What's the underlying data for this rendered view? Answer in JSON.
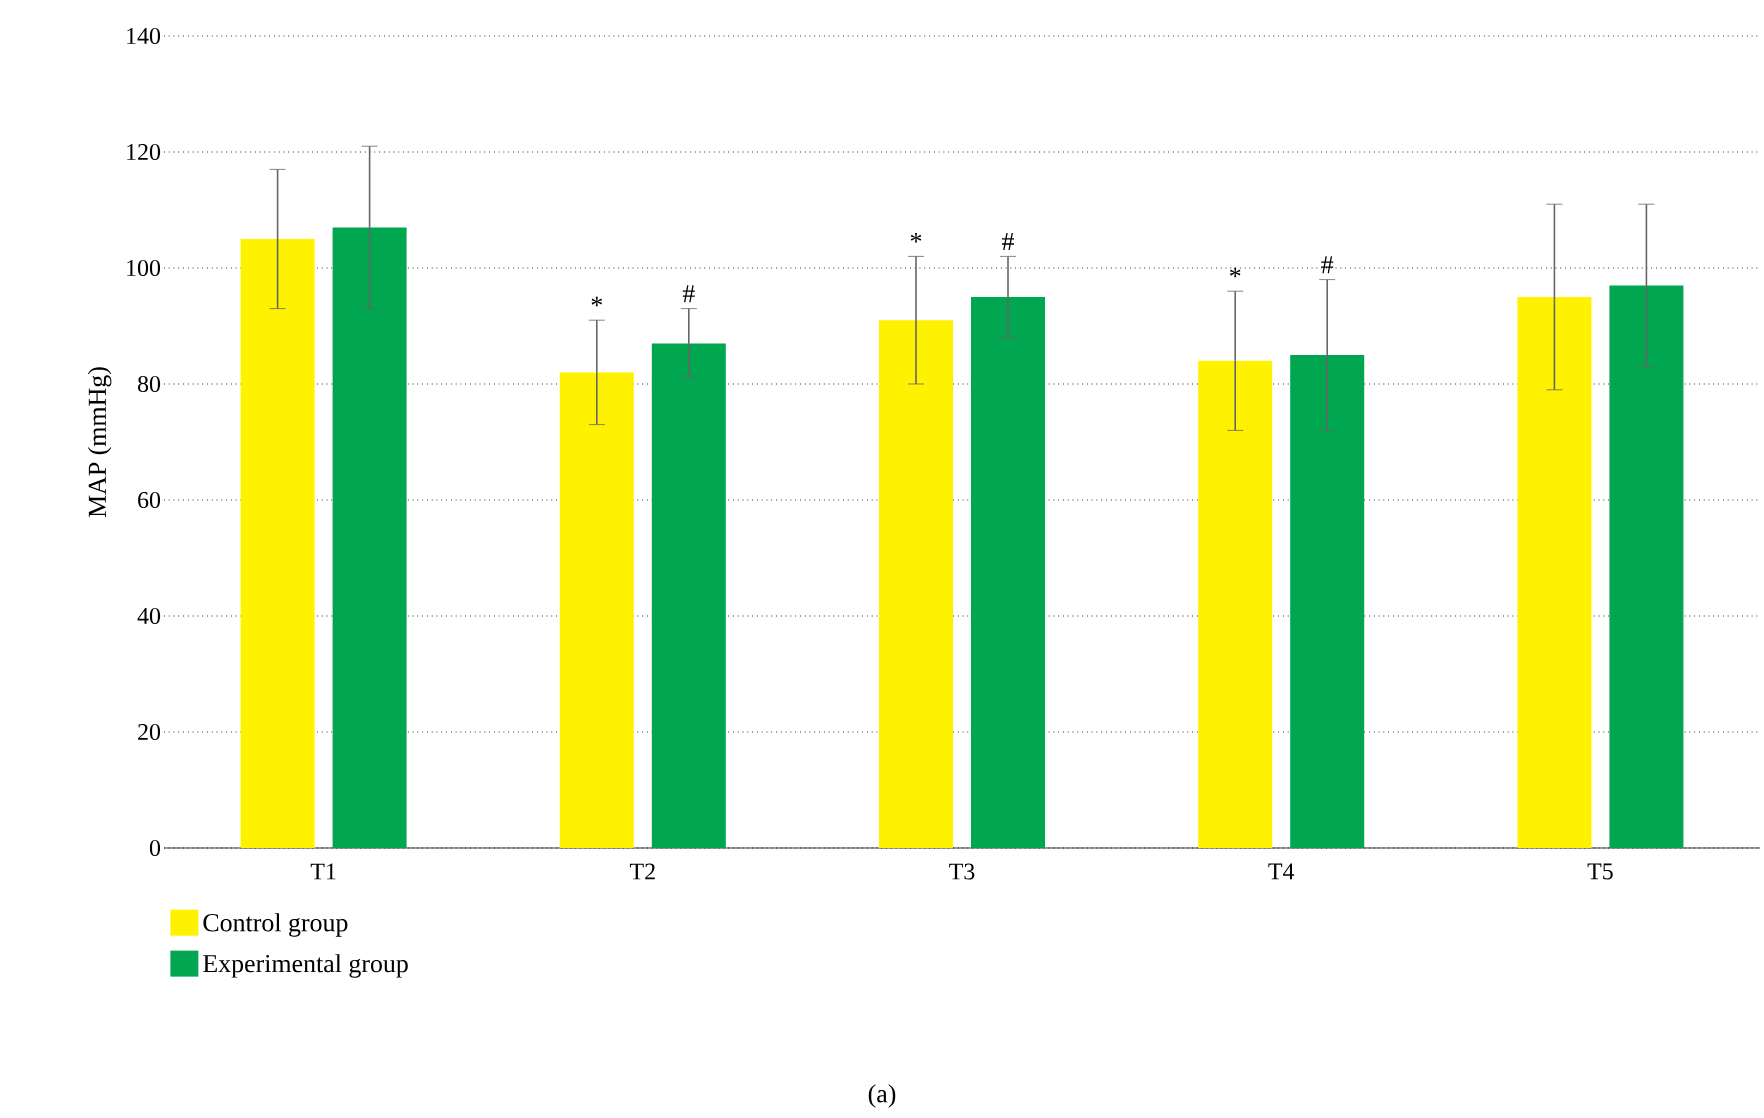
{
  "chart_data": {
    "type": "bar",
    "ylabel": "MAP (mmHg)",
    "categories": [
      "T1",
      "T2",
      "T3",
      "T4",
      "T5"
    ],
    "series": [
      {
        "name": "Control group",
        "color": "#fff200",
        "values": [
          105,
          82,
          91,
          84,
          95
        ],
        "errors": [
          12,
          9,
          11,
          12,
          16
        ]
      },
      {
        "name": "Experimental group",
        "color": "#00a650",
        "values": [
          107,
          87,
          95,
          85,
          97
        ],
        "errors": [
          14,
          6,
          7,
          13,
          14
        ]
      }
    ],
    "ylim": [
      0,
      140
    ],
    "yticks": [
      0,
      20,
      40,
      60,
      80,
      100,
      120,
      140
    ],
    "grid": "y",
    "legend": "bottom left",
    "annotations": [
      "*",
      "#",
      "*",
      "#",
      "*",
      "#",
      "(a)"
    ]
  }
}
